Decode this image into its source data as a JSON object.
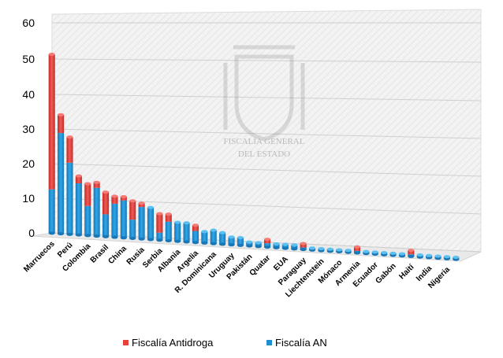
{
  "chart_data": {
    "type": "bar",
    "stacked": true,
    "view": "3d",
    "ylim": [
      0,
      60
    ],
    "yticks": [
      0,
      10,
      20,
      30,
      40,
      50,
      60
    ],
    "grid": true,
    "legend_position": "bottom",
    "categories": [
      "Marruecos",
      "",
      "Perú",
      "",
      "Colombia",
      "",
      "Brasil",
      "",
      "China",
      "",
      "Rusia",
      "",
      "Serbia",
      "",
      "Albania",
      "",
      "Argelia",
      "",
      "R. Dominicana",
      "",
      "Uruguay",
      "",
      "Pakistán",
      "",
      "Quatar",
      "",
      "EUA",
      "",
      "Paraguay",
      "",
      "Liechtenstein",
      "",
      "Mónaco",
      "",
      "Armenia",
      "",
      "Ecuador",
      "",
      "Gabón",
      "",
      "Haití",
      "",
      "India",
      "",
      "Nigeria",
      ""
    ],
    "series": [
      {
        "name": "Fiscalía AN",
        "color": "#1f8fd1",
        "values": [
          12,
          27.5,
          19.5,
          14,
          8,
          13,
          6,
          9,
          10,
          5,
          8.5,
          8.5,
          2,
          5,
          5,
          5,
          3,
          3,
          3.5,
          3,
          2,
          2,
          1,
          1,
          1,
          1,
          1,
          1,
          0.5,
          0.5,
          0.5,
          0.5,
          0.5,
          0.5,
          0.5,
          0.5,
          0.5,
          0.5,
          0.5,
          0.5,
          0.5,
          0.5,
          0.5,
          0.5,
          0.5,
          0.5
        ]
      },
      {
        "name": "Fiscalía Antidroga",
        "color": "#e8403c",
        "values": [
          37,
          5,
          7,
          2,
          6,
          1.5,
          6,
          2,
          1,
          5,
          1,
          0,
          5,
          2,
          0,
          0,
          1.5,
          0,
          0,
          0,
          0,
          0,
          0,
          0,
          1,
          0,
          0,
          0,
          1,
          0,
          0,
          0,
          0,
          0,
          1,
          0,
          0,
          0,
          0,
          0,
          1,
          0,
          0,
          0,
          0,
          0
        ]
      }
    ],
    "legend": [
      "Fiscalía Antidroga",
      "Fiscalía AN"
    ],
    "watermark_text": [
      "FISCALÍA GENERAL",
      "DEL ESTADO"
    ]
  }
}
